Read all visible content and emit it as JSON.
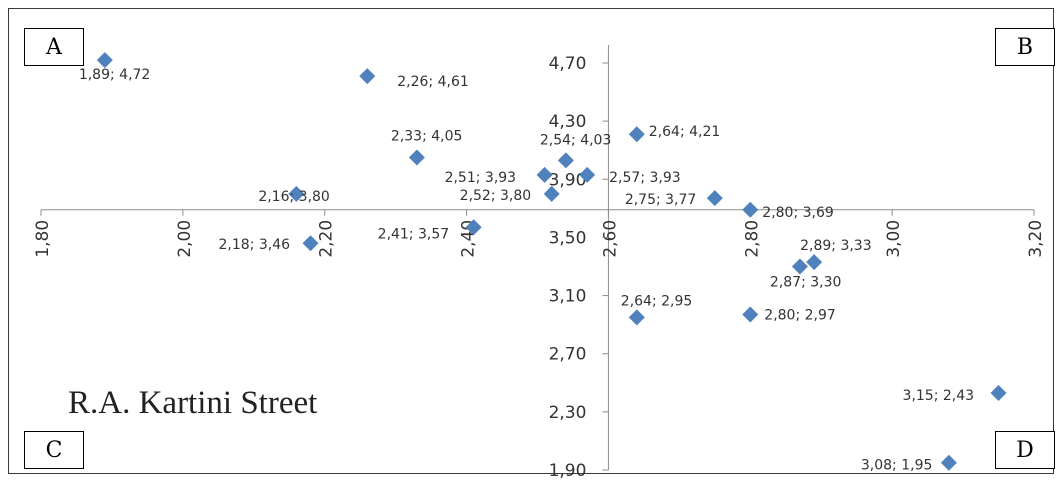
{
  "chart_data": {
    "type": "scatter",
    "title": "",
    "xlabel": "",
    "ylabel": "",
    "xlim": [
      1.8,
      3.2
    ],
    "ylim": [
      1.9,
      4.7
    ],
    "x_axis_crosses_y_at": 3.69,
    "y_axis_crosses_x_at": 2.6,
    "x_ticks": [
      "1,80",
      "2,00",
      "2,20",
      "2,40",
      "2,60",
      "2,80",
      "3,00",
      "3,20"
    ],
    "y_ticks": [
      "4,70",
      "4,30",
      "3,90",
      "3,50",
      "3,10",
      "2,70",
      "2,30",
      "1,90"
    ],
    "marker_color": "#4f81bd",
    "series": [
      {
        "points": [
          {
            "x": 1.89,
            "y": 4.72,
            "label": "1,89; 4,72"
          },
          {
            "x": 2.26,
            "y": 4.61,
            "label": "2,26; 4,61"
          },
          {
            "x": 2.33,
            "y": 4.05,
            "label": "2,33; 4,05"
          },
          {
            "x": 2.54,
            "y": 4.03,
            "label": "2,54; 4,03"
          },
          {
            "x": 2.64,
            "y": 4.21,
            "label": "2,64; 4,21"
          },
          {
            "x": 2.51,
            "y": 3.93,
            "label": "2,51; 3,93"
          },
          {
            "x": 2.57,
            "y": 3.93,
            "label": "2,57; 3,93"
          },
          {
            "x": 2.16,
            "y": 3.8,
            "label": "2,16; 3,80"
          },
          {
            "x": 2.52,
            "y": 3.8,
            "label": "2,52; 3,80"
          },
          {
            "x": 2.75,
            "y": 3.77,
            "label": "2,75; 3,77"
          },
          {
            "x": 2.8,
            "y": 3.69,
            "label": "2,80; 3,69"
          },
          {
            "x": 2.18,
            "y": 3.46,
            "label": "2,18; 3,46"
          },
          {
            "x": 2.41,
            "y": 3.57,
            "label": "2,41; 3,57"
          },
          {
            "x": 2.89,
            "y": 3.33,
            "label": "2,89; 3,33"
          },
          {
            "x": 2.87,
            "y": 3.3,
            "label": "2,87; 3,30"
          },
          {
            "x": 2.64,
            "y": 2.95,
            "label": "2,64; 2,95"
          },
          {
            "x": 2.8,
            "y": 2.97,
            "label": "2,80; 2,97"
          },
          {
            "x": 3.15,
            "y": 2.43,
            "label": "3,15; 2,43"
          },
          {
            "x": 3.08,
            "y": 1.95,
            "label": "3,08; 1,95"
          }
        ]
      }
    ]
  },
  "quadrants": {
    "a": "A",
    "b": "B",
    "c": "C",
    "d": "D"
  },
  "street_label": "R.A. Kartini Street"
}
